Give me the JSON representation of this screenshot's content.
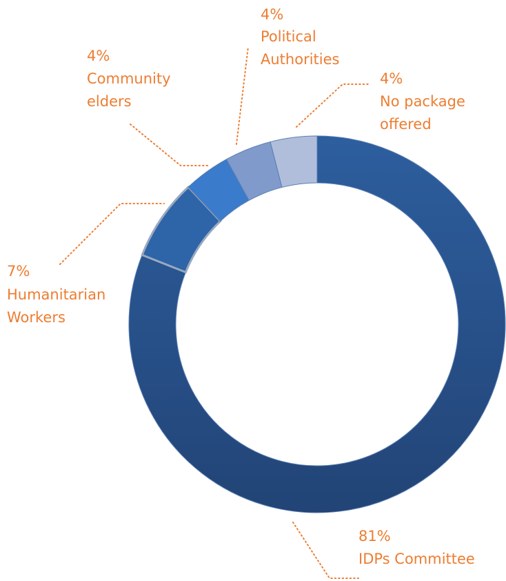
{
  "chart_data": {
    "type": "pie",
    "variant": "donut",
    "slices": [
      {
        "label": "IDPs Committee",
        "percent_label": "81%",
        "value": 81,
        "color": "#2A5389"
      },
      {
        "label": "Humanitarian Workers",
        "percent_label": "7%",
        "value": 7,
        "color": "#2E64A8"
      },
      {
        "label": "Community elders",
        "percent_label": "4%",
        "value": 4,
        "color": "#3A7BCB"
      },
      {
        "label": "Political Authorities",
        "percent_label": "4%",
        "value": 4,
        "color": "#7F9ACB"
      },
      {
        "label": "No package offered",
        "percent_label": "4%",
        "value": 4,
        "color": "#B0BEDC"
      }
    ],
    "label_color": "#ED7D31"
  }
}
